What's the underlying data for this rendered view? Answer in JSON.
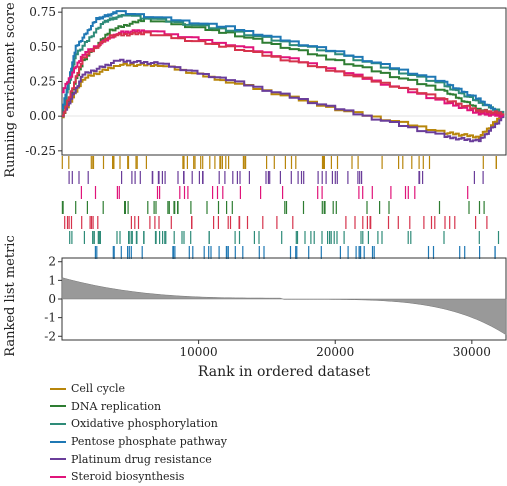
{
  "chart_data": {
    "type": "line",
    "xlabel": "Rank in ordered dataset",
    "ylabel_top": "Running enrichment score",
    "ylabel_bottom": "Ranked list metric",
    "x_ticks": [
      10000,
      20000,
      30000
    ],
    "x_tick_labels": [
      "10000",
      "20000",
      "30000"
    ],
    "x_range": [
      0,
      32500
    ],
    "es_ticks": [
      "0.75",
      "0.50",
      "0.25",
      "0.00",
      "-0.25"
    ],
    "es_tick_values": [
      0.75,
      0.5,
      0.25,
      0.0,
      -0.25
    ],
    "es_range": [
      -0.28,
      0.78
    ],
    "metric_ticks": [
      "2",
      "1",
      "0",
      "-1",
      "-2"
    ],
    "metric_tick_values": [
      2,
      1,
      0,
      -1,
      -2
    ],
    "metric_range": [
      -2.2,
      2.2
    ],
    "grid": false,
    "legend_position": "bottom-left",
    "series": [
      {
        "name": "Cell cycle",
        "color": "#b8860b",
        "x": [
          0,
          1500,
          4000,
          7000,
          12000,
          20000,
          28000,
          30500,
          32300
        ],
        "y": [
          0.0,
          0.27,
          0.37,
          0.37,
          0.25,
          0.05,
          -0.12,
          -0.15,
          0.02
        ]
      },
      {
        "name": "DNA replication",
        "color": "#2e7d32",
        "x": [
          0,
          1500,
          3500,
          6000,
          12000,
          20000,
          28000,
          30500,
          32300
        ],
        "y": [
          0.0,
          0.4,
          0.62,
          0.7,
          0.6,
          0.4,
          0.18,
          0.05,
          0.0
        ]
      },
      {
        "name": "Oxidative phosphorylation",
        "color": "#2e8b78",
        "x": [
          0,
          1000,
          3000,
          4500,
          12000,
          20000,
          28000,
          30500,
          32300
        ],
        "y": [
          0.02,
          0.45,
          0.68,
          0.73,
          0.62,
          0.45,
          0.22,
          0.1,
          0.02
        ]
      },
      {
        "name": "Pentose phosphate pathway",
        "color": "#1f78b4",
        "x": [
          0,
          1000,
          2500,
          4000,
          12000,
          20000,
          28000,
          30500,
          32300
        ],
        "y": [
          0.05,
          0.5,
          0.7,
          0.75,
          0.64,
          0.46,
          0.24,
          0.12,
          0.0
        ]
      },
      {
        "name": "Platinum drug resistance",
        "color": "#6a3d9a",
        "x": [
          0,
          1500,
          4000,
          7000,
          12000,
          20000,
          28000,
          30500,
          32300
        ],
        "y": [
          0.0,
          0.3,
          0.4,
          0.38,
          0.26,
          0.05,
          -0.15,
          -0.18,
          0.0
        ]
      },
      {
        "name": "Steroid biosynthesis",
        "color": "#e0147a",
        "x": [
          0,
          1500,
          4000,
          6000,
          12000,
          20000,
          28000,
          30500,
          32300
        ],
        "y": [
          0.18,
          0.45,
          0.6,
          0.62,
          0.52,
          0.33,
          0.1,
          0.02,
          0.0
        ]
      },
      {
        "name": "",
        "color": "#d6334c",
        "x": [
          0,
          1500,
          3500,
          6000,
          12000,
          20000,
          28000,
          30500,
          32300
        ],
        "y": [
          0.0,
          0.42,
          0.58,
          0.6,
          0.5,
          0.32,
          0.12,
          0.04,
          0.02
        ]
      }
    ],
    "hit_rows": [
      {
        "color": "#b8860b",
        "count": 55
      },
      {
        "color": "#6a3d9a",
        "count": 50
      },
      {
        "color": "#e0147a",
        "count": 25
      },
      {
        "color": "#2e7d32",
        "count": 38
      },
      {
        "color": "#d6334c",
        "count": 45
      },
      {
        "color": "#2e8b78",
        "count": 60
      },
      {
        "color": "#1f78b4",
        "count": 48
      }
    ]
  }
}
